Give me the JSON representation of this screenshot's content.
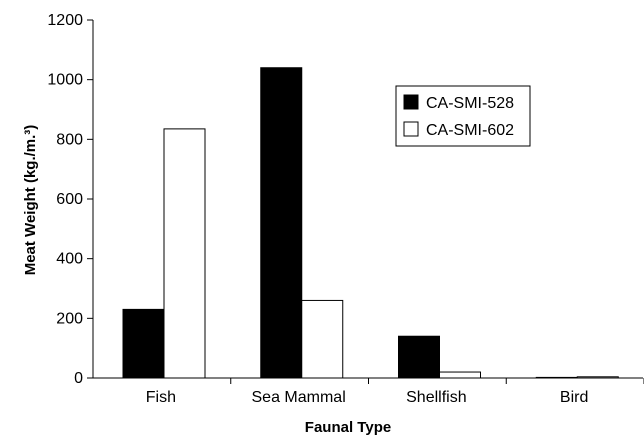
{
  "chart_data": {
    "type": "bar",
    "title": "",
    "xlabel": "Faunal Type",
    "ylabel": "Meat Weight (kg./m.³)",
    "categories": [
      "Fish",
      "Sea Mammal",
      "Shellfish",
      "Bird"
    ],
    "series": [
      {
        "name": "CA-SMI-528",
        "values": [
          230,
          1040,
          140,
          2
        ],
        "color": "#000000"
      },
      {
        "name": "CA-SMI-602",
        "values": [
          835,
          260,
          20,
          4
        ],
        "color": "#ffffff"
      }
    ],
    "ylim": [
      0,
      1200
    ],
    "yticks": [
      0,
      200,
      400,
      600,
      800,
      1000,
      1200
    ],
    "grid": false,
    "legend_position": "upper-right"
  }
}
